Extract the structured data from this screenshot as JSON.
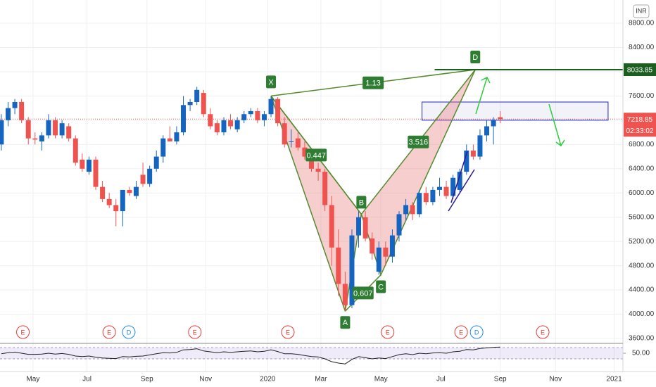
{
  "chart_data": {
    "type": "candlestick",
    "currency": "INR",
    "countdown": "02:33:02",
    "up_color": "#1565c0",
    "down_color": "#ef5350",
    "ylim": [
      3519,
      9183
    ],
    "yticks": [
      {
        "value": 3600,
        "label": "3600.00"
      },
      {
        "value": 4000,
        "label": "4000.00"
      },
      {
        "value": 4400,
        "label": "4400.00"
      },
      {
        "value": 4800,
        "label": "4800.00"
      },
      {
        "value": 5200,
        "label": "5200.00"
      },
      {
        "value": 5600,
        "label": "5600.00"
      },
      {
        "value": 6000,
        "label": "6000.00"
      },
      {
        "value": 6400,
        "label": "6400.00"
      },
      {
        "value": 6800,
        "label": "6800.00"
      },
      {
        "value": 7200,
        "label": "7200.00"
      },
      {
        "value": 7600,
        "label": "7600.00"
      },
      {
        "value": 8000,
        "label": "8000.00"
      },
      {
        "value": 8400,
        "label": "8400.00"
      },
      {
        "value": 8800,
        "label": "8800.00"
      }
    ],
    "xlim": [
      -0.2,
      92.2
    ],
    "xticks": [
      {
        "value": 4.7,
        "label": "May"
      },
      {
        "value": 12.7,
        "label": "Jul"
      },
      {
        "value": 21.6,
        "label": "Sep"
      },
      {
        "value": 30.3,
        "label": "Nov"
      },
      {
        "value": 39.5,
        "label": "2020"
      },
      {
        "value": 47.4,
        "label": "Mar"
      },
      {
        "value": 56.3,
        "label": "May"
      },
      {
        "value": 65.2,
        "label": "Jul"
      },
      {
        "value": 74.0,
        "label": "Sep"
      },
      {
        "value": 82.2,
        "label": "Nov"
      },
      {
        "value": 90.9,
        "label": "2021"
      }
    ],
    "candles": [
      [
        6800,
        7300,
        6700,
        7200
      ],
      [
        7200,
        7500,
        7100,
        7400
      ],
      [
        7400,
        7550,
        7300,
        7500
      ],
      [
        7500,
        7550,
        7150,
        7200
      ],
      [
        7200,
        7250,
        6800,
        6900
      ],
      [
        6900,
        7000,
        6800,
        6880
      ],
      [
        6850,
        7000,
        6700,
        6950
      ],
      [
        6950,
        7300,
        6900,
        7200
      ],
      [
        7200,
        7250,
        6900,
        6950
      ],
      [
        6950,
        7200,
        6900,
        7150
      ],
      [
        7100,
        7150,
        6850,
        6900
      ],
      [
        6900,
        6950,
        6450,
        6500
      ],
      [
        6550,
        6650,
        6350,
        6400
      ],
      [
        6350,
        6600,
        6300,
        6550
      ],
      [
        6550,
        6600,
        6050,
        6100
      ],
      [
        6100,
        6200,
        5850,
        5900
      ],
      [
        5900,
        6000,
        5750,
        5800
      ],
      [
        5800,
        5900,
        5450,
        5700
      ],
      [
        5700,
        6050,
        5450,
        6050
      ],
      [
        6050,
        6100,
        5950,
        6000
      ],
      [
        5950,
        6200,
        5900,
        6100
      ],
      [
        6300,
        6500,
        6100,
        6150
      ],
      [
        6150,
        6450,
        6100,
        6400
      ],
      [
        6400,
        6700,
        6350,
        6600
      ],
      [
        6600,
        6950,
        6500,
        6900
      ],
      [
        6900,
        7100,
        6850,
        6850
      ],
      [
        6850,
        7100,
        6800,
        7000
      ],
      [
        7000,
        7600,
        6950,
        7450
      ],
      [
        7450,
        7550,
        7350,
        7500
      ],
      [
        7500,
        7750,
        7450,
        7700
      ],
      [
        7650,
        7700,
        7250,
        7300
      ],
      [
        7300,
        7400,
        7050,
        7100
      ],
      [
        7150,
        7200,
        6950,
        7000
      ],
      [
        7000,
        7250,
        6950,
        7200
      ],
      [
        7200,
        7300,
        7050,
        7100
      ],
      [
        7050,
        7250,
        7000,
        7200
      ],
      [
        7200,
        7350,
        7150,
        7300
      ],
      [
        7300,
        7400,
        7250,
        7350
      ],
      [
        7350,
        7400,
        7150,
        7200
      ],
      [
        7200,
        7350,
        7100,
        7300
      ],
      [
        7300,
        7600,
        7250,
        7550
      ],
      [
        7550,
        7580,
        7100,
        7150
      ],
      [
        7150,
        7250,
        6750,
        6800
      ],
      [
        6850,
        7050,
        6750,
        6850
      ],
      [
        6900,
        7000,
        6700,
        6750
      ],
      [
        6750,
        6850,
        6550,
        6600
      ],
      [
        6600,
        6650,
        6350,
        6400
      ],
      [
        6400,
        6500,
        6200,
        6350
      ],
      [
        6350,
        6400,
        5700,
        5800
      ],
      [
        5800,
        5950,
        4800,
        5100
      ],
      [
        5100,
        5400,
        4300,
        4500
      ],
      [
        4500,
        4700,
        4050,
        4150
      ],
      [
        4150,
        5400,
        4100,
        5300
      ],
      [
        5300,
        5700,
        5100,
        5600
      ],
      [
        5600,
        5700,
        5200,
        5250
      ],
      [
        5250,
        5350,
        4900,
        5000
      ],
      [
        4700,
        5200,
        4650,
        5100
      ],
      [
        5100,
        5200,
        4800,
        4950
      ],
      [
        4950,
        5400,
        4850,
        5300
      ],
      [
        5300,
        5700,
        5200,
        5650
      ],
      [
        5650,
        5900,
        5550,
        5800
      ],
      [
        5800,
        5850,
        5550,
        5650
      ],
      [
        5650,
        6050,
        5600,
        6000
      ],
      [
        6000,
        6100,
        5800,
        5850
      ],
      [
        5850,
        6100,
        5800,
        6050
      ],
      [
        6050,
        6250,
        5950,
        6100
      ],
      [
        6100,
        6200,
        5900,
        5950
      ],
      [
        5950,
        6300,
        5900,
        6250
      ],
      [
        6050,
        6400,
        6000,
        6350
      ],
      [
        6350,
        6800,
        6300,
        6700
      ],
      [
        6700,
        6800,
        6550,
        6600
      ],
      [
        6600,
        7050,
        6550,
        6950
      ],
      [
        6950,
        7200,
        6850,
        7100
      ],
      [
        7100,
        7250,
        6800,
        7200
      ],
      [
        7250,
        7350,
        7150,
        7218.85
      ]
    ],
    "pattern": [
      {
        "label": "X",
        "x": 40,
        "price": 7600
      },
      {
        "label": "A",
        "x": 51,
        "price": 4050
      },
      {
        "label": "B",
        "x": 53.4,
        "price": 5650
      },
      {
        "label": "C",
        "x": 56.3,
        "price": 4650
      },
      {
        "label": "D",
        "x": 70.3,
        "price": 8033.85
      }
    ],
    "ratios": [
      1.13,
      0.447,
      3.516,
      0.607
    ],
    "level": 8033.85,
    "zone": {
      "x": [
        62.4,
        90
      ],
      "price": [
        7200,
        7500
      ]
    },
    "events": [
      {
        "label": "E",
        "x": 3.2,
        "color": "#e53935"
      },
      {
        "label": "E",
        "x": 16.0,
        "color": "#e53935"
      },
      {
        "label": "D",
        "x": 18.9,
        "color": "#1e88e5"
      },
      {
        "label": "E",
        "x": 28.7,
        "color": "#e53935"
      },
      {
        "label": "E",
        "x": 42.5,
        "color": "#e53935"
      },
      {
        "label": "E",
        "x": 57.3,
        "color": "#e53935"
      },
      {
        "label": "E",
        "x": 68.2,
        "color": "#e53935"
      },
      {
        "label": "D",
        "x": 70.5,
        "color": "#1e88e5"
      },
      {
        "label": "E",
        "x": 80.3,
        "color": "#e53935"
      }
    ],
    "rsi": {
      "ylim": [
        0,
        100
      ],
      "band": [
        30,
        70
      ],
      "yticks": [
        {
          "value": 50,
          "label": "50.00"
        }
      ],
      "values": [
        48,
        52,
        54,
        50,
        46,
        46,
        47,
        50,
        47,
        49,
        46,
        40,
        38,
        40,
        36,
        33,
        32,
        31,
        38,
        37,
        39,
        40,
        44,
        48,
        52,
        51,
        53,
        62,
        63,
        66,
        58,
        55,
        52,
        55,
        53,
        55,
        57,
        58,
        55,
        57,
        62,
        56,
        48,
        48,
        46,
        42,
        38,
        37,
        30,
        20,
        15,
        12,
        28,
        38,
        34,
        30,
        33,
        31,
        38,
        45,
        48,
        45,
        50,
        48,
        51,
        52,
        50,
        55,
        57,
        63,
        62,
        67,
        69,
        71,
        72
      ]
    }
  }
}
